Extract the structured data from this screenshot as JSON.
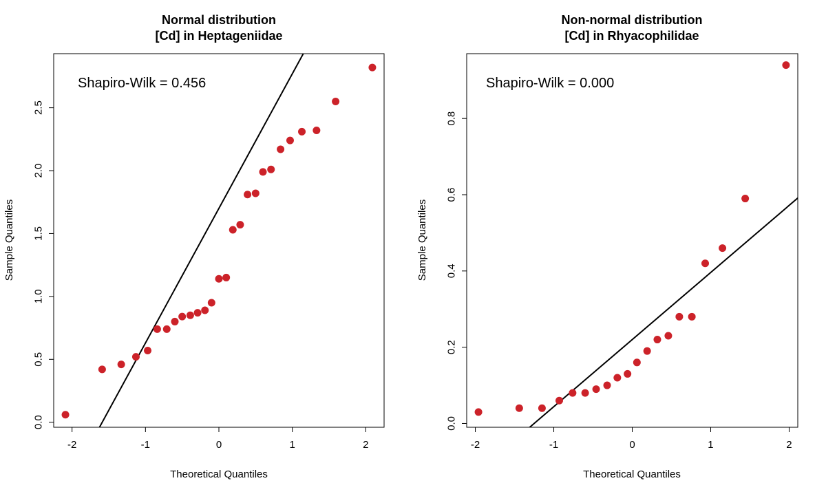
{
  "chart_data": [
    {
      "type": "scatter",
      "title": "Normal distribution",
      "subtitle": "[Cd] in Heptageniidae",
      "xlabel": "Theoretical Quantiles",
      "ylabel": "Sample Quantiles",
      "xlim": [
        -2.25,
        2.25
      ],
      "ylim": [
        -0.04,
        2.93
      ],
      "xticks": [
        -2,
        -1,
        0,
        1,
        2
      ],
      "yticks": [
        0.0,
        0.5,
        1.0,
        1.5,
        2.0,
        2.5
      ],
      "ytick_labels": [
        "0.0",
        "0.5",
        "1.0",
        "1.5",
        "2.0",
        "2.5"
      ],
      "grid": false,
      "annotation": "Shapiro-Wilk = 0.456",
      "point_color": "#cc2229",
      "line_color": "#000000",
      "qqline": {
        "slope": 1.07,
        "intercept": 1.7
      },
      "series": [
        {
          "x": [
            -2.09,
            -1.59,
            -1.33,
            -1.13,
            -0.97,
            -0.84,
            -0.71,
            -0.6,
            -0.5,
            -0.39,
            -0.29,
            -0.19,
            -0.1,
            0.0,
            0.1,
            0.19,
            0.29,
            0.39,
            0.5,
            0.6,
            0.71,
            0.84,
            0.97,
            1.13,
            1.33,
            1.59,
            2.09
          ],
          "y": [
            0.06,
            0.42,
            0.46,
            0.52,
            0.57,
            0.74,
            0.74,
            0.8,
            0.84,
            0.85,
            0.87,
            0.89,
            0.95,
            1.14,
            1.15,
            1.53,
            1.57,
            1.81,
            1.82,
            1.99,
            2.01,
            2.17,
            2.24,
            2.31,
            2.32,
            2.55,
            2.82
          ]
        }
      ]
    },
    {
      "type": "scatter",
      "title": "Non-normal distribution",
      "subtitle": "[Cd] in Rhyacophilidae",
      "xlabel": "Theoretical Quantiles",
      "ylabel": "Sample Quantiles",
      "xlim": [
        -2.11,
        2.11
      ],
      "ylim": [
        -0.01,
        0.97
      ],
      "xticks": [
        -2,
        -1,
        0,
        1,
        2
      ],
      "yticks": [
        0.0,
        0.2,
        0.4,
        0.6,
        0.8
      ],
      "ytick_labels": [
        "0.0",
        "0.2",
        "0.4",
        "0.6",
        "0.8"
      ],
      "grid": false,
      "annotation": "Shapiro-Wilk = 0.000",
      "point_color": "#cc2229",
      "line_color": "#000000",
      "qqline": {
        "slope": 0.176,
        "intercept": 0.22
      },
      "series": [
        {
          "x": [
            -1.96,
            -1.44,
            -1.15,
            -0.93,
            -0.76,
            -0.6,
            -0.46,
            -0.32,
            -0.19,
            -0.06,
            0.06,
            0.19,
            0.32,
            0.46,
            0.6,
            0.76,
            0.93,
            1.15,
            1.44,
            1.96
          ],
          "y": [
            0.03,
            0.04,
            0.04,
            0.06,
            0.08,
            0.08,
            0.09,
            0.1,
            0.12,
            0.13,
            0.16,
            0.19,
            0.22,
            0.23,
            0.28,
            0.28,
            0.42,
            0.46,
            0.59,
            0.94
          ]
        }
      ]
    }
  ]
}
